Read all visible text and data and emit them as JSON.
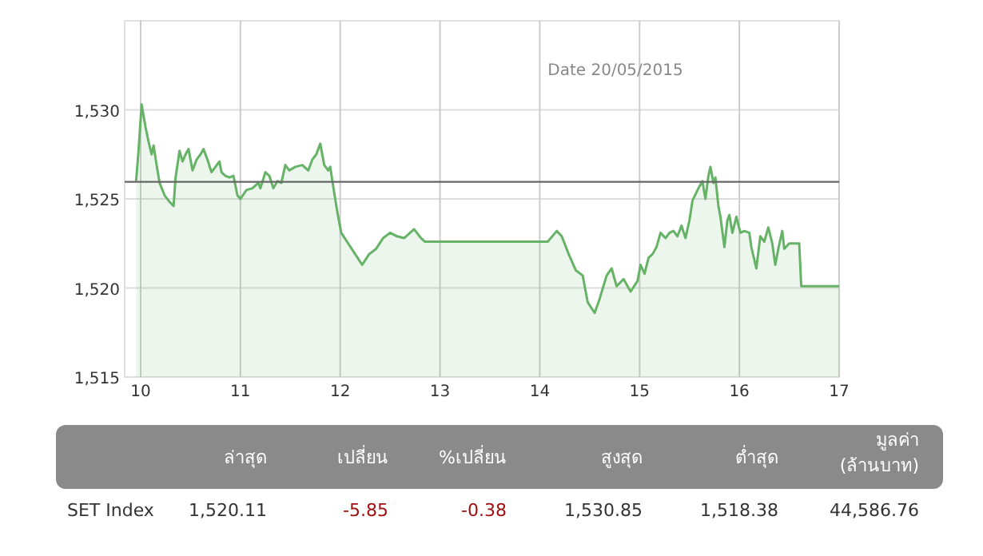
{
  "chart_data": [
    {
      "type": "area",
      "annotations": [
        "Date 20/05/2015"
      ],
      "xlim": [
        9.84,
        17
      ],
      "xticks": [
        10,
        11,
        12,
        13,
        14,
        15,
        16,
        17
      ],
      "ylim": [
        1515,
        1535
      ],
      "yticks": [
        {
          "value": 1515,
          "label": "1,515"
        },
        {
          "value": 1520,
          "label": "1,520"
        },
        {
          "value": 1525,
          "label": "1,525"
        },
        {
          "value": 1530,
          "label": "1,530"
        }
      ],
      "grid": true,
      "ref_lines": [
        {
          "axis": "y",
          "value": 1525.96,
          "color": "#666666"
        }
      ],
      "series": [
        {
          "color": "#66b266",
          "x": [
            9.955,
            9.98,
            10.01,
            10.05,
            10.08,
            10.11,
            10.13,
            10.16,
            10.19,
            10.24,
            10.28,
            10.33,
            10.35,
            10.39,
            10.42,
            10.45,
            10.48,
            10.52,
            10.56,
            10.6,
            10.63,
            10.67,
            10.71,
            10.75,
            10.79,
            10.81,
            10.85,
            10.89,
            10.93,
            10.97,
            11.0,
            11.06,
            11.12,
            11.18,
            11.2,
            11.25,
            11.29,
            11.33,
            11.37,
            11.41,
            11.45,
            11.49,
            11.55,
            11.62,
            11.68,
            11.72,
            11.76,
            11.8,
            11.84,
            11.88,
            11.9,
            11.93,
            11.97,
            12.01,
            12.08,
            12.15,
            12.22,
            12.29,
            12.36,
            12.43,
            12.5,
            12.57,
            12.64,
            12.74,
            12.81,
            12.85,
            14.08,
            14.17,
            14.22,
            14.29,
            14.36,
            14.43,
            14.48,
            14.55,
            14.6,
            14.67,
            14.72,
            14.77,
            14.84,
            14.91,
            14.98,
            15.01,
            15.05,
            15.09,
            15.13,
            15.17,
            15.21,
            15.26,
            15.3,
            15.34,
            15.38,
            15.42,
            15.46,
            15.5,
            15.53,
            15.59,
            15.63,
            15.66,
            15.69,
            15.71,
            15.74,
            15.76,
            15.79,
            15.81,
            15.85,
            15.88,
            15.9,
            15.93,
            15.97,
            16.01,
            16.05,
            16.1,
            16.12,
            16.17,
            16.21,
            16.25,
            16.29,
            16.33,
            16.36,
            16.39,
            16.43,
            16.45,
            16.5,
            16.54,
            16.6,
            16.62,
            17.0
          ],
          "values": [
            1526.0,
            1527.8,
            1530.3,
            1529.0,
            1528.2,
            1527.5,
            1528.0,
            1526.9,
            1525.9,
            1525.2,
            1524.9,
            1524.6,
            1526.2,
            1527.7,
            1527.1,
            1527.5,
            1527.8,
            1526.6,
            1527.2,
            1527.5,
            1527.8,
            1527.2,
            1526.5,
            1526.8,
            1527.1,
            1526.5,
            1526.3,
            1526.2,
            1526.3,
            1525.2,
            1525.0,
            1525.5,
            1525.6,
            1525.9,
            1525.6,
            1526.5,
            1526.3,
            1525.6,
            1526.0,
            1525.9,
            1526.9,
            1526.6,
            1526.8,
            1526.9,
            1526.6,
            1527.2,
            1527.5,
            1528.1,
            1526.9,
            1526.6,
            1526.8,
            1525.7,
            1524.3,
            1523.1,
            1522.5,
            1521.9,
            1521.3,
            1521.9,
            1522.2,
            1522.8,
            1523.1,
            1522.9,
            1522.8,
            1523.3,
            1522.8,
            1522.6,
            1522.6,
            1523.2,
            1522.9,
            1521.9,
            1521.0,
            1520.7,
            1519.2,
            1518.6,
            1519.4,
            1520.7,
            1521.1,
            1520.1,
            1520.5,
            1519.8,
            1520.4,
            1521.3,
            1520.8,
            1521.7,
            1521.9,
            1522.3,
            1523.1,
            1522.8,
            1523.1,
            1523.2,
            1522.9,
            1523.5,
            1522.8,
            1523.8,
            1524.9,
            1525.6,
            1526.0,
            1525.0,
            1526.3,
            1526.8,
            1525.9,
            1526.2,
            1524.6,
            1524.0,
            1522.3,
            1523.8,
            1524.1,
            1523.1,
            1524.0,
            1523.1,
            1523.2,
            1523.1,
            1522.3,
            1521.1,
            1522.9,
            1522.6,
            1523.4,
            1522.5,
            1521.3,
            1522.2,
            1523.2,
            1522.2,
            1522.5,
            1522.5,
            1522.5,
            1520.1,
            1520.1
          ]
        }
      ]
    },
    {
      "type": "other",
      "categories": [
        null,
        "ล่าสุด",
        "เปลี่ยน",
        "%เปลี่ยน",
        "สูงสุด",
        "ต่ำสุด",
        "มูลค่า (ล้านบาท)"
      ],
      "annotations": [
        "SET Index",
        "1,520.11",
        "-5.85",
        "-0.38",
        "1,530.85",
        "1,518.38",
        "44,586.76"
      ]
    }
  ]
}
